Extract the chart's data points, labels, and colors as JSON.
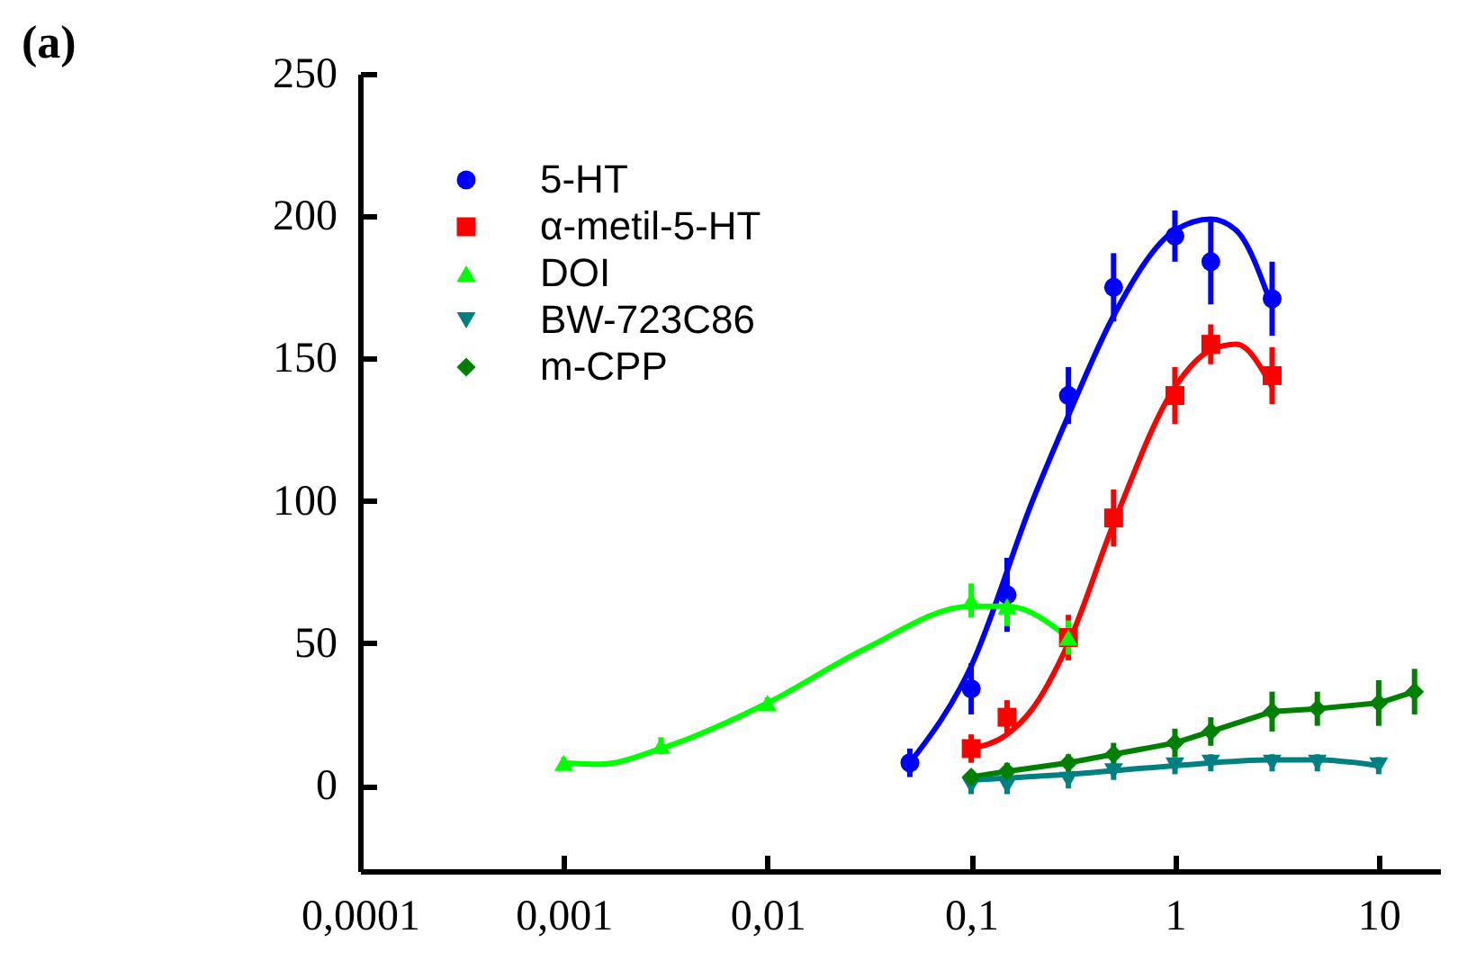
{
  "chart_data": {
    "type": "scatter",
    "title": "(a)",
    "log": "x",
    "grid": false,
    "legend": "top left",
    "xlim": [
      0.0001,
      20
    ],
    "ylim": [
      -30,
      250
    ],
    "xticks": [
      {
        "value": 0.0001,
        "label": "0,0001"
      },
      {
        "value": 0.001,
        "label": "0,001"
      },
      {
        "value": 0.01,
        "label": "0,01"
      },
      {
        "value": 0.1,
        "label": "0,1"
      },
      1,
      10
    ],
    "yticks": [
      0,
      50,
      100,
      150,
      200,
      250
    ],
    "series": [
      {
        "name": "5-HT",
        "type": "scatter",
        "marker": "circle",
        "color": "#0000ff",
        "x": [
          0.05,
          0.1,
          0.15,
          0.3,
          0.5,
          1,
          1.5,
          3
        ],
        "values": [
          8,
          34,
          67,
          137,
          175,
          193,
          184,
          171
        ],
        "errors": [
          5,
          9,
          13,
          10,
          12,
          9,
          15,
          13
        ]
      },
      {
        "name": "α-metil-5-HT",
        "type": "scatter",
        "marker": "square",
        "color": "#ff0000",
        "x": [
          0.1,
          0.15,
          0.3,
          0.5,
          1,
          1.5,
          3
        ],
        "values": [
          13,
          24,
          52,
          94,
          137,
          155,
          144
        ],
        "errors": [
          5,
          6,
          8,
          10,
          10,
          7,
          10
        ]
      },
      {
        "name": "DOI",
        "type": "scatter",
        "marker": "triangle",
        "color": "#00ff00",
        "x": [
          0.001,
          0.003,
          0.01,
          0.1,
          0.15,
          0.3
        ],
        "values": [
          8,
          14,
          29,
          65,
          63,
          52
        ],
        "errors": [
          2,
          3,
          2,
          6,
          7,
          6
        ]
      },
      {
        "name": "BW-723C86",
        "type": "scatter",
        "marker": "triangle-down",
        "color": "#008080",
        "x": [
          0.1,
          0.15,
          0.3,
          0.5,
          1,
          1.5,
          3,
          5,
          10
        ],
        "values": [
          0,
          0,
          2,
          5,
          7,
          8,
          8,
          8,
          7
        ],
        "errors": [
          3,
          3,
          3,
          3,
          3,
          3,
          3,
          3,
          3
        ]
      },
      {
        "name": "m-CPP",
        "type": "line",
        "marker": "diamond",
        "color": "#008000",
        "x": [
          0.1,
          0.15,
          0.3,
          0.5,
          1,
          1.5,
          3,
          5,
          10,
          15
        ],
        "values": [
          3,
          5,
          8,
          11,
          15,
          19,
          26,
          27,
          29,
          33
        ],
        "errors": [
          2,
          3,
          3,
          4,
          5,
          5,
          7,
          6,
          8,
          8
        ]
      },
      {
        "type": "line",
        "color": "#0000ff",
        "x": [
          0.05,
          0.1,
          0.2,
          0.3,
          0.5,
          1,
          1.5,
          2,
          3
        ],
        "values": [
          8,
          42,
          100,
          130,
          165,
          195,
          199,
          195,
          168
        ]
      },
      {
        "type": "line",
        "color": "#ff0000",
        "x": [
          0.1,
          0.15,
          0.2,
          0.3,
          0.5,
          1,
          1.5,
          2,
          3
        ],
        "values": [
          13,
          18,
          27,
          50,
          92,
          140,
          153,
          155,
          140
        ]
      },
      {
        "type": "line",
        "color": "#00ff00",
        "x": [
          0.001,
          0.0015,
          0.003,
          0.01,
          0.03,
          0.1,
          0.15,
          0.3
        ],
        "values": [
          8,
          7.5,
          13,
          29,
          48,
          63,
          63,
          52
        ]
      },
      {
        "type": "line",
        "color": "#008080",
        "x": [
          0.1,
          0.3,
          1,
          3,
          5,
          10
        ],
        "values": [
          2,
          4,
          7,
          9,
          9,
          7
        ]
      }
    ]
  }
}
